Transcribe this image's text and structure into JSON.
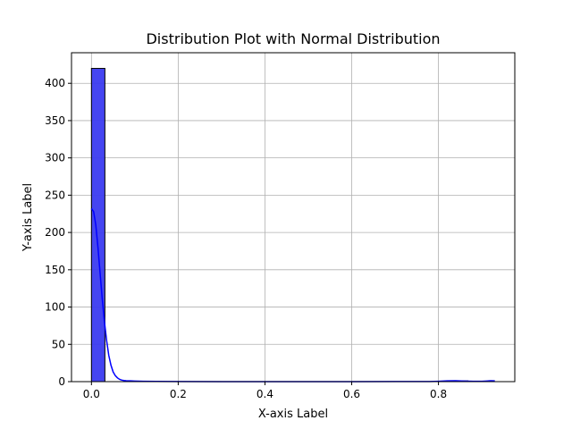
{
  "chart_data": {
    "type": "bar",
    "title": "Distribution Plot with Normal Distribution",
    "xlabel": "X-axis Label",
    "ylabel": "Y-axis Label",
    "xlim": [
      -0.046,
      0.976
    ],
    "ylim": [
      0,
      441
    ],
    "x_ticks": [
      0.0,
      0.2,
      0.4,
      0.6,
      0.8
    ],
    "x_tick_labels": [
      "0.0",
      "0.2",
      "0.4",
      "0.6",
      "0.8"
    ],
    "y_ticks": [
      0,
      50,
      100,
      150,
      200,
      250,
      300,
      350,
      400
    ],
    "y_tick_labels": [
      "0",
      "50",
      "100",
      "150",
      "200",
      "250",
      "300",
      "350",
      "400"
    ],
    "grid": true,
    "legend": "none",
    "bar_color": "#3b3bf0",
    "bar_edge_color": "#000000",
    "curve_color": "#0000ff",
    "bins": {
      "edges": [
        0.0,
        0.031,
        0.062,
        0.093,
        0.124,
        0.155,
        0.186,
        0.217,
        0.248,
        0.279,
        0.31,
        0.341,
        0.372,
        0.403,
        0.434,
        0.465,
        0.496,
        0.527,
        0.558,
        0.589,
        0.62,
        0.651,
        0.682,
        0.713,
        0.744,
        0.775,
        0.806,
        0.837,
        0.868,
        0.899,
        0.93
      ],
      "counts": [
        420,
        0,
        0,
        0,
        0,
        0,
        0,
        0,
        0,
        0,
        0,
        0,
        0,
        0,
        0,
        0,
        0,
        0,
        0,
        0,
        0,
        0,
        0,
        0,
        0,
        0,
        0,
        1,
        0,
        0
      ]
    },
    "kde": {
      "x": [
        0.0,
        0.005,
        0.01,
        0.015,
        0.02,
        0.025,
        0.03,
        0.035,
        0.04,
        0.045,
        0.05,
        0.055,
        0.06,
        0.065,
        0.07,
        0.075,
        0.08,
        0.09,
        0.1,
        0.12,
        0.15,
        0.2,
        0.3,
        0.4,
        0.5,
        0.6,
        0.7,
        0.78,
        0.8,
        0.82,
        0.84,
        0.86,
        0.88,
        0.9,
        0.91,
        0.92,
        0.93
      ],
      "y": [
        232,
        228,
        210,
        180,
        145,
        110,
        80,
        55,
        35,
        22,
        13,
        8,
        5,
        3,
        2,
        1.5,
        1.2,
        1,
        0.8,
        0.5,
        0.3,
        0.1,
        0.05,
        0.05,
        0.05,
        0.05,
        0.1,
        0.2,
        0.5,
        1,
        1.2,
        0.8,
        0.5,
        0.4,
        0.8,
        1.2,
        1
      ]
    }
  }
}
